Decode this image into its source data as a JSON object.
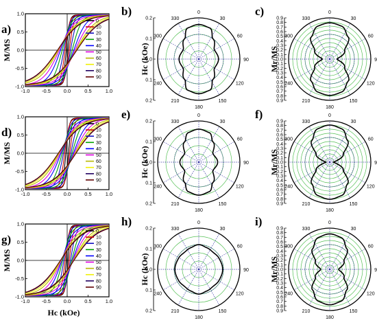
{
  "colors": [
    "#000000",
    "#d00000",
    "#1010c0",
    "#00a000",
    "#0000ff",
    "#e000e0",
    "#b8b800",
    "#f0f000",
    "#200060",
    "#600000"
  ],
  "chart_data": [
    {
      "id": "a",
      "label": "a)",
      "type": "line",
      "xlabel": "",
      "ylabel": "M/MS",
      "xlim": [
        -1.0,
        1.0
      ],
      "ylim": [
        -1.0,
        1.0
      ],
      "xticks": [
        "-1.0",
        "-0.5",
        "0.0",
        "0.5",
        "1.0"
      ],
      "yticks": [
        "-1.0",
        "-0.5",
        "0.0",
        "0.5",
        "1.0"
      ],
      "legend": [
        "0",
        "10",
        "20",
        "30",
        "40",
        "50",
        "60",
        "70",
        "80",
        "90"
      ],
      "series": {
        "hc": [
          0.02,
          0.05,
          0.08,
          0.12,
          0.16,
          0.19,
          0.21,
          0.22,
          0.23,
          0.23
        ],
        "mr": [
          0.95,
          0.9,
          0.82,
          0.7,
          0.55,
          0.4,
          0.25,
          0.15,
          0.08,
          0.05
        ]
      }
    },
    {
      "id": "b",
      "label": "b)",
      "type": "polar",
      "ylabel": "Hc (kOe)",
      "rmax": 0.25,
      "angles": [
        "0",
        "30",
        "60",
        "90",
        "120",
        "150",
        "180",
        "210",
        "240",
        "270",
        "300",
        "330"
      ],
      "rticks": [
        "0.2",
        "0.1",
        "0.0",
        "0.1",
        "0.2"
      ],
      "anchors": [
        [
          0,
          0.21
        ],
        [
          20,
          0.2
        ],
        [
          35,
          0.15
        ],
        [
          60,
          0.11
        ],
        [
          90,
          0.12
        ],
        [
          120,
          0.11
        ],
        [
          145,
          0.15
        ],
        [
          160,
          0.2
        ],
        [
          180,
          0.21
        ]
      ]
    },
    {
      "id": "c",
      "label": "c)",
      "type": "polar",
      "ylabel": "Mr/MS",
      "rmax": 1.0,
      "angles": [
        "0",
        "30",
        "60",
        "90",
        "120",
        "150",
        "180",
        "210",
        "240",
        "270",
        "300",
        "330"
      ],
      "rticks": [
        "0.9",
        "0.8",
        "0.7",
        "0.6",
        "0.5",
        "0.4",
        "0.3",
        "0.2",
        "0.1",
        "0.0",
        "0.1",
        "0.2",
        "0.3",
        "0.4",
        "0.5",
        "0.6",
        "0.7",
        "0.8",
        "0.9"
      ],
      "anchors": [
        [
          0,
          0.88
        ],
        [
          20,
          0.85
        ],
        [
          40,
          0.7
        ],
        [
          60,
          0.42
        ],
        [
          90,
          0.18
        ],
        [
          120,
          0.42
        ],
        [
          140,
          0.7
        ],
        [
          160,
          0.85
        ],
        [
          180,
          0.88
        ]
      ]
    },
    {
      "id": "d",
      "label": "d)",
      "type": "line",
      "xlabel": "",
      "ylabel": "M/MS",
      "xlim": [
        -1.0,
        1.0
      ],
      "ylim": [
        -1.0,
        1.0
      ],
      "xticks": [
        "-1.0",
        "-0.5",
        "0.0",
        "0.5",
        "1.0"
      ],
      "yticks": [
        "-1.0",
        "-0.5",
        "0.0",
        "0.5",
        "1.0"
      ],
      "legend": [
        "0",
        "10",
        "20",
        "30",
        "40",
        "50",
        "60",
        "70",
        "80",
        "90"
      ],
      "series": {
        "hc": [
          0.03,
          0.06,
          0.09,
          0.12,
          0.15,
          0.17,
          0.19,
          0.2,
          0.21,
          0.21
        ],
        "mr": [
          0.95,
          0.9,
          0.8,
          0.68,
          0.52,
          0.38,
          0.26,
          0.16,
          0.09,
          0.06
        ]
      }
    },
    {
      "id": "e",
      "label": "e)",
      "type": "polar",
      "ylabel": "Hc (kOe)",
      "rmax": 0.25,
      "angles": [
        "0",
        "30",
        "60",
        "90",
        "120",
        "150",
        "180",
        "210",
        "240",
        "270",
        "300",
        "330"
      ],
      "rticks": [
        "0.2",
        "0.1",
        "0.0",
        "0.1",
        "0.2"
      ],
      "anchors": [
        [
          0,
          0.2
        ],
        [
          20,
          0.19
        ],
        [
          35,
          0.15
        ],
        [
          60,
          0.1
        ],
        [
          90,
          0.115
        ],
        [
          120,
          0.1
        ],
        [
          145,
          0.15
        ],
        [
          160,
          0.19
        ],
        [
          180,
          0.2
        ]
      ]
    },
    {
      "id": "f",
      "label": "f)",
      "type": "polar",
      "ylabel": "Mr/MS",
      "rmax": 1.0,
      "angles": [
        "0",
        "30",
        "60",
        "90",
        "120",
        "150",
        "180",
        "210",
        "240",
        "270",
        "300",
        "330"
      ],
      "rticks": [
        "0.9",
        "0.8",
        "0.7",
        "0.6",
        "0.5",
        "0.4",
        "0.3",
        "0.2",
        "0.1",
        "0.0",
        "0.1",
        "0.2",
        "0.3",
        "0.4",
        "0.5",
        "0.6",
        "0.7",
        "0.8",
        "0.9"
      ],
      "anchors": [
        [
          0,
          0.9
        ],
        [
          20,
          0.86
        ],
        [
          40,
          0.68
        ],
        [
          60,
          0.38
        ],
        [
          85,
          0.12
        ],
        [
          90,
          0.08
        ],
        [
          95,
          0.12
        ],
        [
          120,
          0.38
        ],
        [
          140,
          0.68
        ],
        [
          160,
          0.86
        ],
        [
          180,
          0.9
        ]
      ]
    },
    {
      "id": "g",
      "label": "g)",
      "type": "line",
      "xlabel": "Hc (kOe)",
      "ylabel": "M/MS",
      "xlim": [
        -1.0,
        1.0
      ],
      "ylim": [
        -1.0,
        1.0
      ],
      "xticks": [
        "-1.0",
        "-0.5",
        "0.0",
        "0.5",
        "1.0"
      ],
      "yticks": [
        "-1.0",
        "-0.5",
        "0.0",
        "0.5",
        "1.0"
      ],
      "legend": [
        "0",
        "10",
        "20",
        "30",
        "40",
        "50",
        "60",
        "70",
        "80",
        "90"
      ],
      "series": {
        "hc": [
          0.02,
          0.05,
          0.08,
          0.11,
          0.13,
          0.14,
          0.15,
          0.15,
          0.16,
          0.16
        ],
        "mr": [
          0.97,
          0.92,
          0.84,
          0.72,
          0.58,
          0.44,
          0.3,
          0.18,
          0.1,
          0.06
        ]
      }
    },
    {
      "id": "h",
      "label": "h)",
      "type": "polar",
      "ylabel": "Hc (kOe)",
      "rmax": 0.25,
      "angles": [
        "0",
        "30",
        "60",
        "90",
        "120",
        "150",
        "180",
        "210",
        "240",
        "270",
        "300",
        "330"
      ],
      "rticks": [
        "0.2",
        "0.1",
        "0.0",
        "0.1",
        "0.2"
      ],
      "anchors": [
        [
          0,
          0.15
        ],
        [
          20,
          0.14
        ],
        [
          40,
          0.135
        ],
        [
          60,
          0.14
        ],
        [
          90,
          0.145
        ],
        [
          120,
          0.14
        ],
        [
          140,
          0.135
        ],
        [
          160,
          0.14
        ],
        [
          180,
          0.15
        ]
      ]
    },
    {
      "id": "i",
      "label": "i)",
      "type": "polar",
      "ylabel": "Mr/MS",
      "rmax": 1.0,
      "angles": [
        "0",
        "30",
        "60",
        "90",
        "120",
        "150",
        "180",
        "210",
        "240",
        "270",
        "300",
        "330"
      ],
      "rticks": [
        "0.9",
        "0.8",
        "0.7",
        "0.6",
        "0.5",
        "0.4",
        "0.3",
        "0.2",
        "0.1",
        "0.0",
        "0.1",
        "0.2",
        "0.3",
        "0.4",
        "0.5",
        "0.6",
        "0.7",
        "0.8",
        "0.9"
      ],
      "anchors": [
        [
          0,
          0.86
        ],
        [
          20,
          0.82
        ],
        [
          40,
          0.65
        ],
        [
          60,
          0.4
        ],
        [
          90,
          0.22
        ],
        [
          120,
          0.4
        ],
        [
          140,
          0.65
        ],
        [
          160,
          0.82
        ],
        [
          180,
          0.86
        ]
      ]
    }
  ]
}
